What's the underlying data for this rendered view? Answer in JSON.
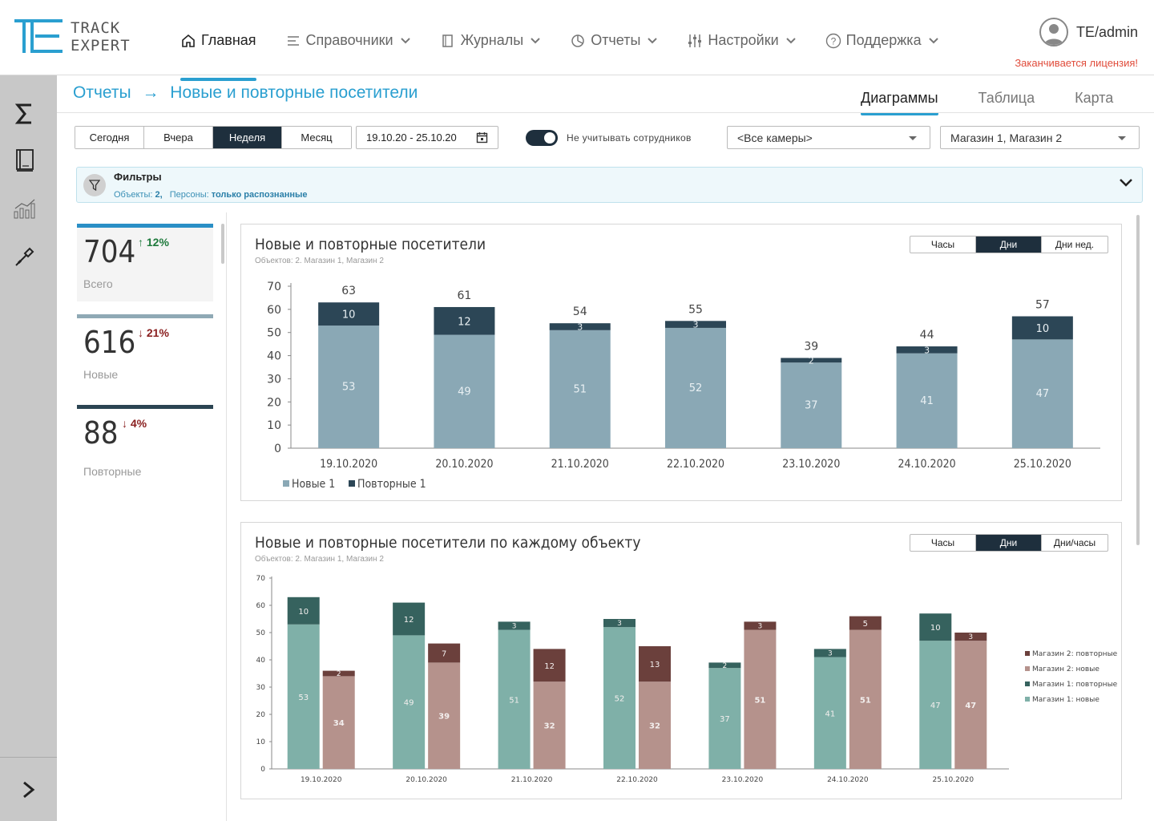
{
  "app": {
    "logo_line1": "TRACK",
    "logo_line2": "EXPERT"
  },
  "nav": [
    {
      "label": "Главная",
      "icon": "home-icon",
      "active": true
    },
    {
      "label": "Справочники",
      "icon": "list-icon"
    },
    {
      "label": "Журналы",
      "icon": "book-icon"
    },
    {
      "label": "Отчеты",
      "icon": "pie-chart-icon"
    },
    {
      "label": "Настройки",
      "icon": "sliders-icon"
    },
    {
      "label": "Поддержка",
      "icon": "help-icon"
    }
  ],
  "user": {
    "name": "TE/admin",
    "license_warning": "Заканчивается лицензия!"
  },
  "sidebar": {
    "icons": [
      "sigma-icon",
      "journal-icon",
      "analytics-icon",
      "tools-icon"
    ],
    "expand": ">"
  },
  "breadcrumb": {
    "root": "Отчеты",
    "arrow": "→",
    "current": "Новые и повторные посетители"
  },
  "view_tabs": [
    "Диаграммы",
    "Таблица",
    "Карта"
  ],
  "period": {
    "options": [
      "Сегодня",
      "Вчера",
      "Неделя",
      "Месяц"
    ],
    "active": "Неделя"
  },
  "date_range": "19.10.20 - 25.10.20",
  "exclude_staff": {
    "label": "Не учитывать сотрудников",
    "on": true
  },
  "camera_select": "<Все камеры>",
  "store_select": "Магазин 1, Магазин 2",
  "filters": {
    "title": "Фильтры",
    "objects_label": "Объекты:",
    "objects_value": "2,",
    "persons_label": "Персоны:",
    "persons_value": "только распознанные"
  },
  "kpis": [
    {
      "value": "704",
      "delta": "↑ 12%",
      "label": "Всего",
      "bar_color": "#2a8fc6",
      "delta_color": "#1e7a3c"
    },
    {
      "value": "616",
      "delta": "↓ 21%",
      "label": "Новые",
      "bar_color": "#8fa9b5",
      "delta_color": "#8a2020"
    },
    {
      "value": "88",
      "delta": "↓ 4%",
      "label": "Повторные",
      "bar_color": "#2b4452",
      "delta_color": "#8a2020"
    }
  ],
  "chart1": {
    "title": "Новые и повторные посетители",
    "subtitle": "Объектов: 2. Магазин 1, Магазин 2",
    "modes": [
      "Часы",
      "Дни",
      "Дни нед."
    ],
    "active_mode": "Дни"
  },
  "chart2": {
    "title": "Новые и повторные посетители по каждому объекту",
    "subtitle": "Объектов: 2. Магазин 1, Магазин 2",
    "modes": [
      "Часы",
      "Дни",
      "Дни/часы"
    ],
    "active_mode": "Дни"
  },
  "chart_data": [
    {
      "type": "bar",
      "stacked": true,
      "categories": [
        "19.10.2020",
        "20.10.2020",
        "21.10.2020",
        "22.10.2020",
        "23.10.2020",
        "24.10.2020",
        "25.10.2020"
      ],
      "series": [
        {
          "name": "Новые 1",
          "values": [
            53,
            49,
            51,
            52,
            37,
            41,
            47
          ],
          "color": "#8aa8b5"
        },
        {
          "name": "Повторные 1",
          "values": [
            10,
            12,
            3,
            3,
            2,
            3,
            10
          ],
          "color": "#2c4656"
        }
      ],
      "totals": [
        63,
        61,
        54,
        55,
        39,
        44,
        57
      ],
      "ylim": [
        0,
        70
      ],
      "yticks": [
        0,
        10,
        20,
        30,
        40,
        50,
        60,
        70
      ],
      "legend": "bottom-left"
    },
    {
      "type": "bar",
      "stacked": true,
      "grouped": true,
      "categories": [
        "19.10.2020",
        "20.10.2020",
        "21.10.2020",
        "22.10.2020",
        "23.10.2020",
        "24.10.2020",
        "25.10.2020"
      ],
      "groups": [
        {
          "series": [
            {
              "name": "Магазин 1: новые",
              "values": [
                53,
                49,
                51,
                52,
                37,
                41,
                47
              ],
              "color": "#7fb0a8"
            },
            {
              "name": "Магазин 1: повторные",
              "values": [
                10,
                12,
                3,
                3,
                2,
                3,
                10
              ],
              "color": "#36625e"
            }
          ]
        },
        {
          "series": [
            {
              "name": "Магазин 2: новые",
              "values": [
                34,
                39,
                32,
                32,
                51,
                51,
                47
              ],
              "color": "#b5928c"
            },
            {
              "name": "Магазин 2: повторные",
              "values": [
                2,
                7,
                12,
                13,
                3,
                5,
                3
              ],
              "color": "#6b403c"
            }
          ]
        }
      ],
      "ylim": [
        0,
        70
      ],
      "yticks": [
        0,
        10,
        20,
        30,
        40,
        50,
        60,
        70
      ],
      "legend_order": [
        "Магазин 2: повторные",
        "Магазин 2: новые",
        "Магазин 1: повторные",
        "Магазин 1: новые"
      ],
      "legend": "right"
    }
  ]
}
